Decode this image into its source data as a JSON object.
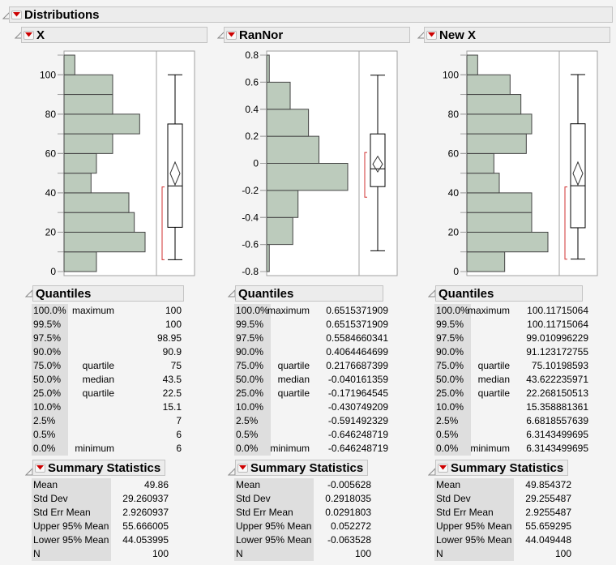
{
  "title": "Distributions",
  "colors": {
    "bar_fill": "#bccbbc",
    "bar_stroke": "#444444",
    "ci_bracket": "#d03030",
    "red_triangle": "#cc0000"
  },
  "panels": [
    {
      "name": "X",
      "quantiles_title": "Quantiles",
      "quantiles": [
        {
          "pct": "100.0%",
          "label": "maximum",
          "value": "100"
        },
        {
          "pct": "99.5%",
          "label": "",
          "value": "100"
        },
        {
          "pct": "97.5%",
          "label": "",
          "value": "98.95"
        },
        {
          "pct": "90.0%",
          "label": "",
          "value": "90.9"
        },
        {
          "pct": "75.0%",
          "label": "quartile",
          "value": "75"
        },
        {
          "pct": "50.0%",
          "label": "median",
          "value": "43.5"
        },
        {
          "pct": "25.0%",
          "label": "quartile",
          "value": "22.5"
        },
        {
          "pct": "10.0%",
          "label": "",
          "value": "15.1"
        },
        {
          "pct": "2.5%",
          "label": "",
          "value": "7"
        },
        {
          "pct": "0.5%",
          "label": "",
          "value": "6"
        },
        {
          "pct": "0.0%",
          "label": "minimum",
          "value": "6"
        }
      ],
      "summary_title": "Summary Statistics",
      "summary": [
        {
          "label": "Mean",
          "value": "49.86"
        },
        {
          "label": "Std Dev",
          "value": "29.260937"
        },
        {
          "label": "Std Err Mean",
          "value": "2.9260937"
        },
        {
          "label": "Upper 95% Mean",
          "value": "55.666005"
        },
        {
          "label": "Lower 95% Mean",
          "value": "44.053995"
        },
        {
          "label": "N",
          "value": "100"
        }
      ]
    },
    {
      "name": "RanNor",
      "quantiles_title": "Quantiles",
      "quantiles": [
        {
          "pct": "100.0%",
          "label": "maximum",
          "value": "0.6515371909"
        },
        {
          "pct": "99.5%",
          "label": "",
          "value": "0.6515371909"
        },
        {
          "pct": "97.5%",
          "label": "",
          "value": "0.5584660341"
        },
        {
          "pct": "90.0%",
          "label": "",
          "value": "0.4064464699"
        },
        {
          "pct": "75.0%",
          "label": "quartile",
          "value": "0.2176687399"
        },
        {
          "pct": "50.0%",
          "label": "median",
          "value": "-0.040161359"
        },
        {
          "pct": "25.0%",
          "label": "quartile",
          "value": "-0.171964545"
        },
        {
          "pct": "10.0%",
          "label": "",
          "value": "-0.430749209"
        },
        {
          "pct": "2.5%",
          "label": "",
          "value": "-0.591492329"
        },
        {
          "pct": "0.5%",
          "label": "",
          "value": "-0.646248719"
        },
        {
          "pct": "0.0%",
          "label": "minimum",
          "value": "-0.646248719"
        }
      ],
      "summary_title": "Summary Statistics",
      "summary": [
        {
          "label": "Mean",
          "value": "-0.005628"
        },
        {
          "label": "Std Dev",
          "value": "0.2918035"
        },
        {
          "label": "Std Err Mean",
          "value": "0.0291803"
        },
        {
          "label": "Upper 95% Mean",
          "value": "0.052272"
        },
        {
          "label": "Lower 95% Mean",
          "value": "-0.063528"
        },
        {
          "label": "N",
          "value": "100"
        }
      ]
    },
    {
      "name": "New X",
      "quantiles_title": "Quantiles",
      "quantiles": [
        {
          "pct": "100.0%",
          "label": "maximum",
          "value": "100.11715064"
        },
        {
          "pct": "99.5%",
          "label": "",
          "value": "100.11715064"
        },
        {
          "pct": "97.5%",
          "label": "",
          "value": "99.010996229"
        },
        {
          "pct": "90.0%",
          "label": "",
          "value": "91.123172755"
        },
        {
          "pct": "75.0%",
          "label": "quartile",
          "value": "75.10198593"
        },
        {
          "pct": "50.0%",
          "label": "median",
          "value": "43.622235971"
        },
        {
          "pct": "25.0%",
          "label": "quartile",
          "value": "22.268150513"
        },
        {
          "pct": "10.0%",
          "label": "",
          "value": "15.358881361"
        },
        {
          "pct": "2.5%",
          "label": "",
          "value": "6.6818557639"
        },
        {
          "pct": "0.5%",
          "label": "",
          "value": "6.3143499695"
        },
        {
          "pct": "0.0%",
          "label": "minimum",
          "value": "6.3143499695"
        }
      ],
      "summary_title": "Summary Statistics",
      "summary": [
        {
          "label": "Mean",
          "value": "49.854372"
        },
        {
          "label": "Std Dev",
          "value": "29.255487"
        },
        {
          "label": "Std Err Mean",
          "value": "2.9255487"
        },
        {
          "label": "Upper 95% Mean",
          "value": "55.659295"
        },
        {
          "label": "Lower 95% Mean",
          "value": "44.049448"
        },
        {
          "label": "N",
          "value": "100"
        }
      ]
    }
  ],
  "chart_data": [
    {
      "type": "bar",
      "orientation": "horizontal-histogram",
      "title": "X",
      "bins": [
        [
          0,
          10
        ],
        [
          10,
          20
        ],
        [
          20,
          30
        ],
        [
          30,
          40
        ],
        [
          40,
          50
        ],
        [
          50,
          60
        ],
        [
          60,
          70
        ],
        [
          70,
          80
        ],
        [
          80,
          90
        ],
        [
          90,
          100
        ],
        [
          100,
          110
        ]
      ],
      "counts": [
        6,
        15,
        13,
        12,
        5,
        6,
        9,
        14,
        9,
        9,
        2
      ],
      "ylim": [
        0,
        110
      ],
      "yticks": [
        0,
        20,
        40,
        60,
        80,
        100
      ],
      "boxplot": {
        "min": 6,
        "q1": 22.5,
        "median": 43.5,
        "q3": 75,
        "max": 100,
        "mean": 49.86,
        "mean_ci": [
          44.053995,
          55.666005
        ],
        "shortest_half": [
          6,
          43
        ]
      }
    },
    {
      "type": "bar",
      "orientation": "horizontal-histogram",
      "title": "RanNor",
      "bins": [
        [
          -0.8,
          -0.6
        ],
        [
          -0.6,
          -0.4
        ],
        [
          -0.4,
          -0.2
        ],
        [
          -0.2,
          0
        ],
        [
          0,
          0.2
        ],
        [
          0.2,
          0.4
        ],
        [
          0.4,
          0.6
        ],
        [
          0.6,
          0.8
        ]
      ],
      "counts": [
        1,
        10,
        12,
        31,
        20,
        16,
        9,
        1
      ],
      "ylim": [
        -0.8,
        0.8
      ],
      "yticks": [
        -0.8,
        -0.6,
        -0.4,
        -0.2,
        0,
        0.2,
        0.4,
        0.6,
        0.8
      ],
      "boxplot": {
        "min": -0.646248719,
        "q1": -0.171964545,
        "median": -0.040161359,
        "q3": 0.2176687399,
        "max": 0.6515371909,
        "mean": -0.005628,
        "mean_ci": [
          -0.063528,
          0.052272
        ],
        "shortest_half": [
          -0.25,
          0.08
        ]
      }
    },
    {
      "type": "bar",
      "orientation": "horizontal-histogram",
      "title": "New X",
      "bins": [
        [
          0,
          10
        ],
        [
          10,
          20
        ],
        [
          20,
          30
        ],
        [
          30,
          40
        ],
        [
          40,
          50
        ],
        [
          50,
          60
        ],
        [
          60,
          70
        ],
        [
          70,
          80
        ],
        [
          80,
          90
        ],
        [
          90,
          100
        ],
        [
          100,
          110
        ]
      ],
      "counts": [
        7,
        15,
        12,
        12,
        6,
        5,
        11,
        12,
        10,
        8,
        2
      ],
      "ylim": [
        0,
        110
      ],
      "yticks": [
        0,
        20,
        40,
        60,
        80,
        100
      ],
      "boxplot": {
        "min": 6.3143499695,
        "q1": 22.268150513,
        "median": 43.622235971,
        "q3": 75.10198593,
        "max": 100.11715064,
        "mean": 49.854372,
        "mean_ci": [
          44.049448,
          55.659295
        ],
        "shortest_half": [
          6.3,
          43
        ]
      }
    }
  ]
}
